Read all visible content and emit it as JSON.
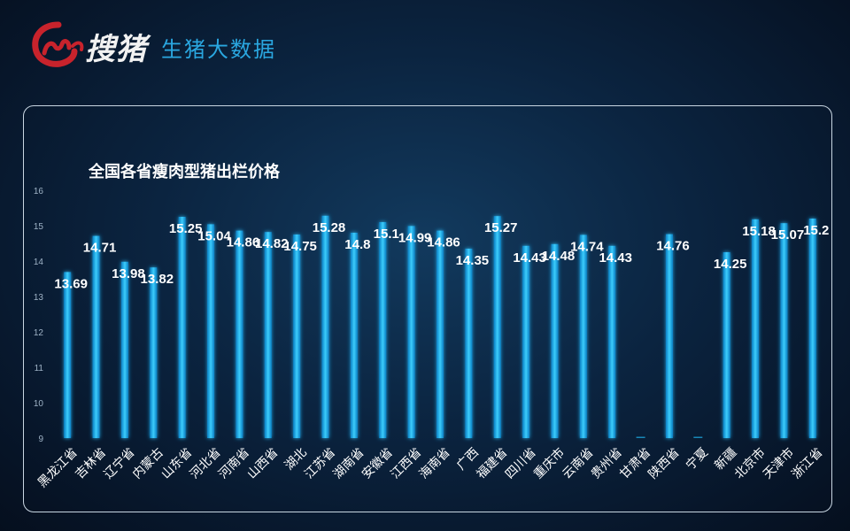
{
  "brand": {
    "name": "搜猪",
    "tagline": "生猪大数据",
    "logo_color": "#c8232c",
    "tagline_color": "#2aa7e0"
  },
  "chart_data": {
    "type": "bar",
    "title": "全国各省瘦肉型猪出栏价格",
    "xlabel": "",
    "ylabel": "",
    "ylim": [
      9,
      16
    ],
    "yticks": [
      9,
      10,
      11,
      12,
      13,
      14,
      15,
      16
    ],
    "grid": false,
    "bar_color": "#1fb3f0",
    "categories": [
      "黑龙江省",
      "吉林省",
      "辽宁省",
      "内蒙古",
      "山东省",
      "河北省",
      "河南省",
      "山西省",
      "湖北",
      "江苏省",
      "湖南省",
      "安徽省",
      "江西省",
      "海南省",
      "广西",
      "福建省",
      "四川省",
      "重庆市",
      "云南省",
      "贵州省",
      "甘肃省",
      "陕西省",
      "宁夏",
      "新疆",
      "北京市",
      "天津市",
      "浙江省"
    ],
    "values": [
      13.69,
      14.71,
      13.98,
      13.82,
      15.25,
      15.04,
      14.86,
      14.82,
      14.75,
      15.28,
      14.8,
      15.1,
      14.99,
      14.86,
      14.35,
      15.27,
      14.43,
      14.48,
      14.74,
      14.43,
      null,
      14.76,
      null,
      14.25,
      15.18,
      15.07,
      15.2
    ],
    "labels": [
      "13.69",
      "14.71",
      "13.98",
      "13.82",
      "15.25",
      "15.04",
      "14.86",
      "14.82",
      "14.75",
      "15.28",
      "14.8",
      "15.1",
      "14.99",
      "14.86",
      "14.35",
      "15.27",
      "14.43",
      "14.48",
      "14.74",
      "14.43",
      "",
      "14.76",
      "",
      "14.25",
      "15.18",
      "15.07",
      "15.2"
    ]
  }
}
